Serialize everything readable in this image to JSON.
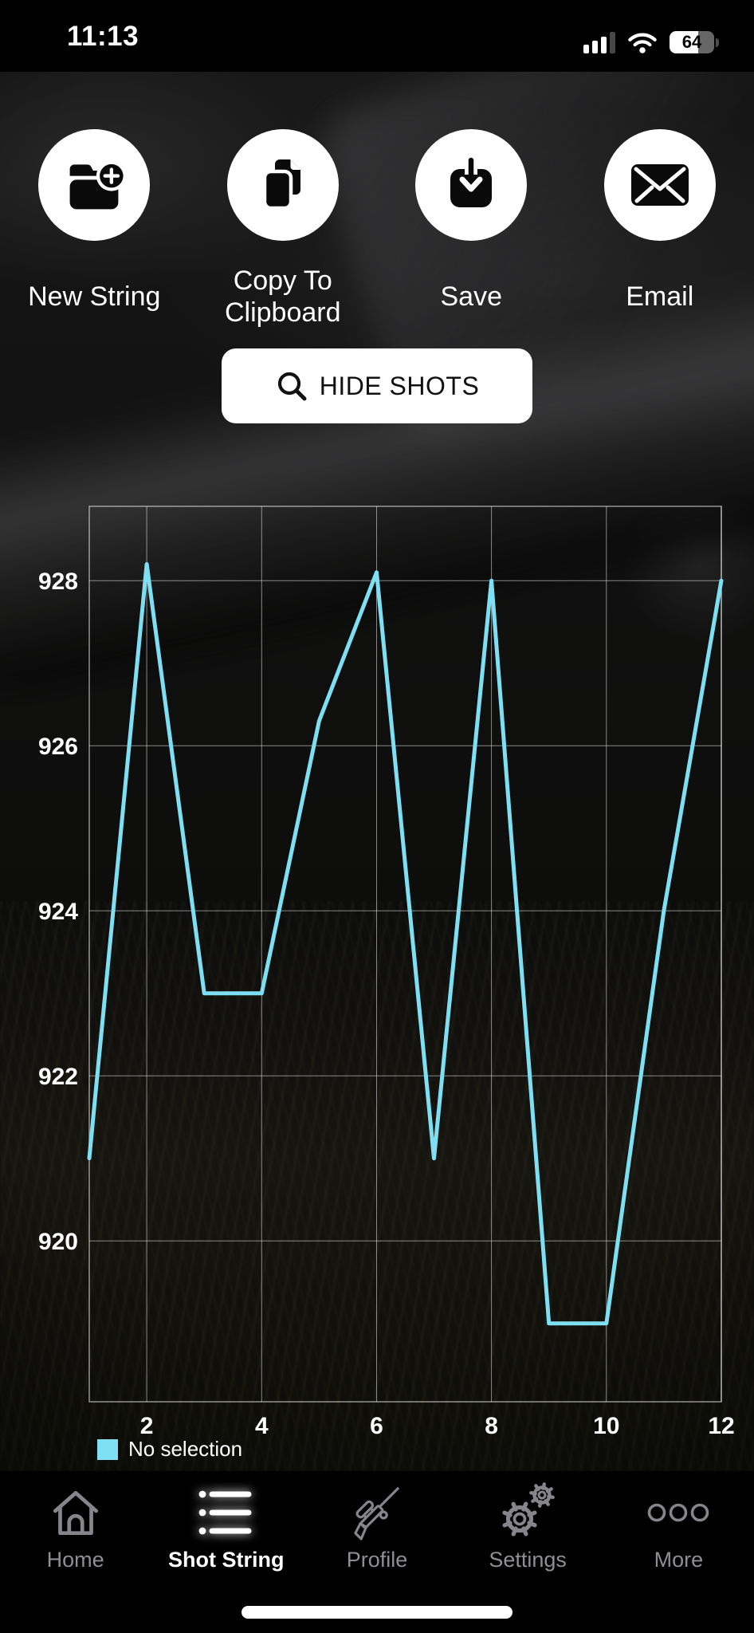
{
  "status_bar": {
    "time": "11:13",
    "battery_percent": "64",
    "signal_bars": {
      "filled": 3,
      "total": 4
    }
  },
  "action_buttons": [
    {
      "label": "New String",
      "icon": "folder-plus-icon"
    },
    {
      "label": "Copy To Clipboard",
      "icon": "copy-docs-icon"
    },
    {
      "label": "Save",
      "icon": "save-arrow-icon"
    },
    {
      "label": "Email",
      "icon": "envelope-icon"
    }
  ],
  "hide_shots_button": {
    "label": "HIDE SHOTS",
    "icon": "search-icon"
  },
  "chart_data": {
    "type": "line",
    "title": "",
    "xlabel": "",
    "ylabel": "",
    "x": [
      1,
      2,
      3,
      4,
      5,
      6,
      7,
      8,
      9,
      10,
      11,
      12
    ],
    "series": [
      {
        "name": "No selection",
        "values": [
          921,
          928.2,
          923,
          923,
          926.3,
          928.1,
          921,
          928,
          919,
          919,
          924,
          928
        ]
      }
    ],
    "xticks": [
      2,
      4,
      6,
      8,
      10,
      12
    ],
    "yticks": [
      920,
      922,
      924,
      926,
      928
    ],
    "xlim": [
      1,
      12
    ],
    "ylim": [
      918.05,
      928.9
    ],
    "line_color": "#7FDFF2",
    "grid": true,
    "legend_position": "bottom-left"
  },
  "legend": {
    "label": "No selection",
    "swatch_color": "#7FE0F4"
  },
  "tab_bar": {
    "items": [
      {
        "label": "Home",
        "icon": "home-icon",
        "active": false
      },
      {
        "label": "Shot String",
        "icon": "shot-string-list-icon",
        "active": true
      },
      {
        "label": "Profile",
        "icon": "rifle-icon",
        "active": false
      },
      {
        "label": "Settings",
        "icon": "gears-icon",
        "active": false
      },
      {
        "label": "More",
        "icon": "more-dots-icon",
        "active": false
      }
    ]
  },
  "colors": {
    "accent_line": "#7FDFF2",
    "tab_inactive": "#8F8F93",
    "tab_active": "#FFFFFF",
    "grid_line": "rgba(255,255,255,0.55)",
    "icon_circle_bg": "#FFFFFF"
  }
}
